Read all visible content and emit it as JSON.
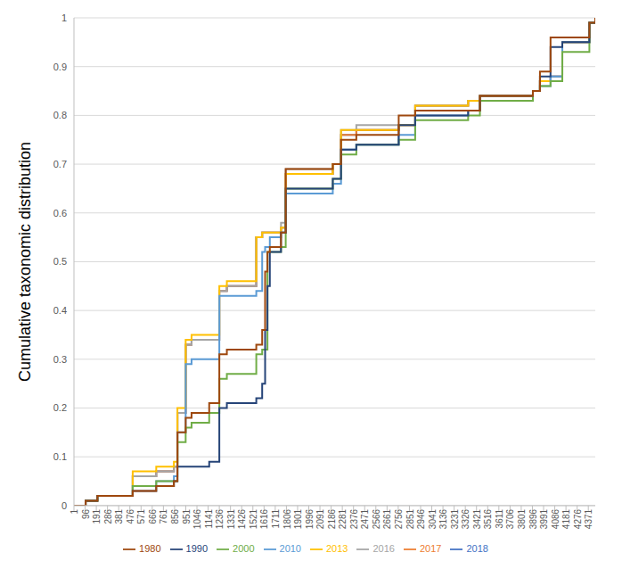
{
  "chart_data": {
    "type": "line",
    "y_label": "Cumulative taxonomic distribution",
    "grid": true,
    "legend": "bottom",
    "line_style": "step",
    "x": [
      1,
      100,
      200,
      500,
      700,
      850,
      880,
      950,
      1000,
      1150,
      1236,
      1300,
      1550,
      1600,
      1625,
      1645,
      1665,
      1760,
      1800,
      2200,
      2270,
      2400,
      2760,
      2900,
      3350,
      3450,
      3900,
      3960,
      4050,
      4150,
      4380,
      4430
    ],
    "xlim": [
      1,
      4430
    ],
    "xticks": [
      1,
      96,
      191,
      286,
      381,
      476,
      571,
      666,
      761,
      856,
      951,
      1046,
      1141,
      1236,
      1331,
      1426,
      1521,
      1616,
      1711,
      1806,
      1901,
      1996,
      2091,
      2186,
      2281,
      2376,
      2471,
      2566,
      2661,
      2756,
      2851,
      2946,
      3041,
      3136,
      3231,
      3326,
      3421,
      3516,
      3611,
      3706,
      3801,
      3896,
      3991,
      4086,
      4181,
      4276,
      4371
    ],
    "ylim": [
      0,
      1
    ],
    "yticks": [
      0,
      0.1,
      0.2,
      0.3,
      0.4,
      0.5,
      0.6,
      0.7,
      0.8,
      0.9,
      1
    ],
    "series": [
      {
        "name": "2018",
        "color": "#4472c4",
        "values": [
          0,
          0.01,
          0.02,
          0.06,
          0.07,
          0.08,
          0.19,
          0.33,
          0.34,
          0.34,
          0.44,
          0.45,
          0.55,
          0.56,
          0.56,
          0.56,
          0.56,
          0.57,
          0.68,
          0.7,
          0.76,
          0.77,
          0.78,
          0.82,
          0.83,
          0.84,
          0.85,
          0.87,
          0.88,
          0.95,
          0.99,
          1
        ]
      },
      {
        "name": "2017",
        "color": "#ed7d31",
        "values": [
          0,
          0.01,
          0.02,
          0.06,
          0.07,
          0.08,
          0.19,
          0.33,
          0.34,
          0.34,
          0.44,
          0.45,
          0.55,
          0.56,
          0.56,
          0.56,
          0.56,
          0.57,
          0.68,
          0.7,
          0.76,
          0.77,
          0.78,
          0.82,
          0.83,
          0.84,
          0.85,
          0.87,
          0.88,
          0.95,
          0.99,
          1
        ]
      },
      {
        "name": "2016",
        "color": "#a5a5a5",
        "values": [
          0,
          0.01,
          0.02,
          0.06,
          0.07,
          0.08,
          0.19,
          0.33,
          0.34,
          0.34,
          0.44,
          0.45,
          0.55,
          0.56,
          0.56,
          0.56,
          0.56,
          0.58,
          0.69,
          0.7,
          0.77,
          0.78,
          0.78,
          0.82,
          0.83,
          0.84,
          0.85,
          0.87,
          0.88,
          0.95,
          0.99,
          1
        ]
      },
      {
        "name": "2013",
        "color": "#ffc000",
        "values": [
          0,
          0.01,
          0.02,
          0.07,
          0.08,
          0.09,
          0.2,
          0.34,
          0.35,
          0.35,
          0.45,
          0.46,
          0.55,
          0.56,
          0.56,
          0.56,
          0.56,
          0.57,
          0.68,
          0.7,
          0.77,
          0.77,
          0.78,
          0.82,
          0.83,
          0.84,
          0.85,
          0.87,
          0.87,
          0.95,
          0.99,
          1
        ]
      },
      {
        "name": "2010",
        "color": "#5b9bd5",
        "values": [
          0,
          0.01,
          0.02,
          0.04,
          0.05,
          0.06,
          0.15,
          0.29,
          0.3,
          0.3,
          0.43,
          0.43,
          0.44,
          0.52,
          0.53,
          0.53,
          0.55,
          0.56,
          0.64,
          0.66,
          0.73,
          0.74,
          0.76,
          0.8,
          0.81,
          0.83,
          0.85,
          0.86,
          0.88,
          0.95,
          0.99,
          1
        ]
      },
      {
        "name": "2000",
        "color": "#70ad47",
        "values": [
          0,
          0.01,
          0.02,
          0.04,
          0.05,
          0.05,
          0.13,
          0.16,
          0.17,
          0.19,
          0.26,
          0.27,
          0.31,
          0.32,
          0.32,
          0.52,
          0.52,
          0.53,
          0.65,
          0.67,
          0.72,
          0.74,
          0.75,
          0.79,
          0.8,
          0.83,
          0.85,
          0.86,
          0.87,
          0.93,
          0.99,
          1
        ]
      },
      {
        "name": "1990",
        "color": "#264478",
        "values": [
          0,
          0.01,
          0.02,
          0.03,
          0.04,
          0.05,
          0.08,
          0.08,
          0.08,
          0.09,
          0.2,
          0.21,
          0.22,
          0.25,
          0.36,
          0.45,
          0.52,
          0.56,
          0.65,
          0.67,
          0.73,
          0.74,
          0.78,
          0.8,
          0.81,
          0.84,
          0.85,
          0.88,
          0.94,
          0.95,
          0.99,
          1
        ]
      },
      {
        "name": "1980",
        "color": "#9e480e",
        "values": [
          0,
          0.01,
          0.02,
          0.03,
          0.04,
          0.05,
          0.15,
          0.18,
          0.19,
          0.21,
          0.31,
          0.32,
          0.33,
          0.36,
          0.48,
          0.52,
          0.53,
          0.56,
          0.69,
          0.7,
          0.75,
          0.76,
          0.8,
          0.81,
          0.81,
          0.84,
          0.85,
          0.89,
          0.96,
          0.96,
          0.99,
          1
        ]
      }
    ]
  }
}
